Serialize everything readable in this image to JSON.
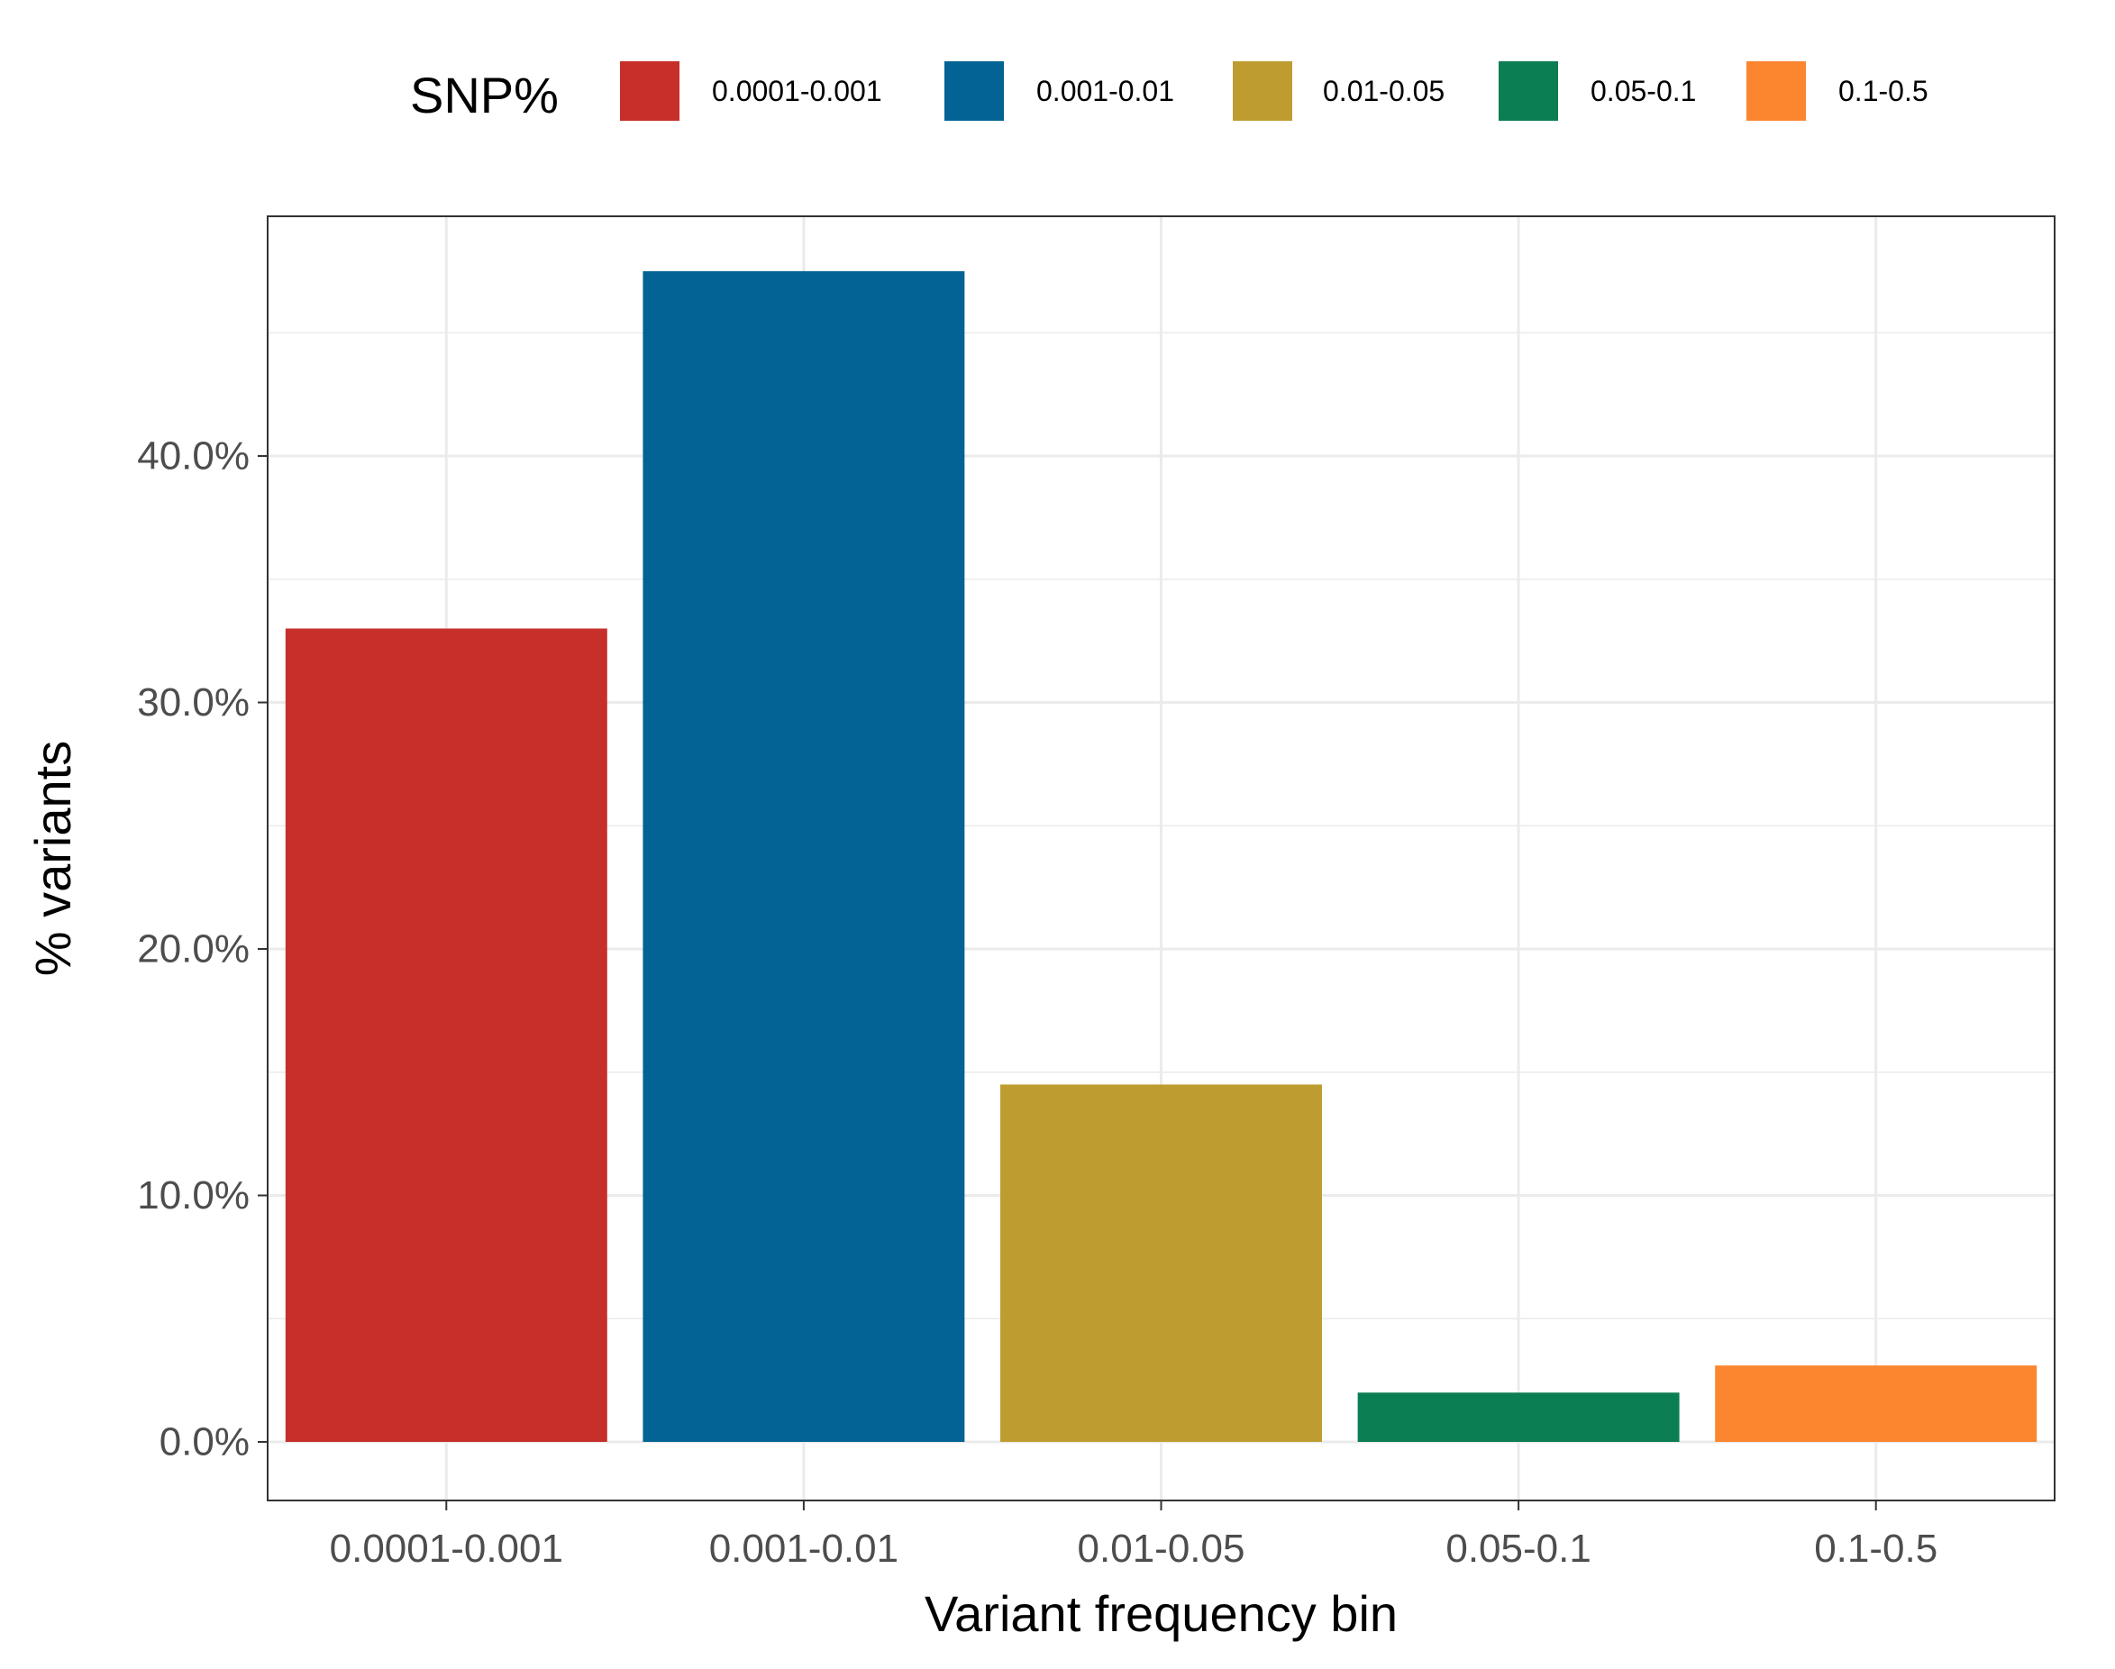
{
  "chart_data": {
    "type": "bar",
    "title": "",
    "xlabel": "Variant frequency bin",
    "ylabel": "% variants",
    "categories": [
      "0.0001-0.001",
      "0.001-0.01",
      "0.01-0.05",
      "0.05-0.1",
      "0.1-0.5"
    ],
    "values": [
      33.0,
      47.5,
      14.5,
      2.0,
      3.1
    ],
    "colors": [
      "#C62F2A",
      "#036394",
      "#BF9C2F",
      "#0C7E53",
      "#FC8530"
    ],
    "ylim": [
      0,
      47.5
    ],
    "yticks": [
      0,
      10,
      20,
      30,
      40
    ],
    "ytick_labels": [
      "0.0%",
      "10.0%",
      "20.0%",
      "30.0%",
      "40.0%"
    ],
    "grid": true,
    "legend": {
      "title": "SNP%",
      "placement": "top",
      "entries": [
        "0.0001-0.001",
        "0.001-0.01",
        "0.01-0.05",
        "0.05-0.1",
        "0.1-0.5"
      ]
    }
  }
}
